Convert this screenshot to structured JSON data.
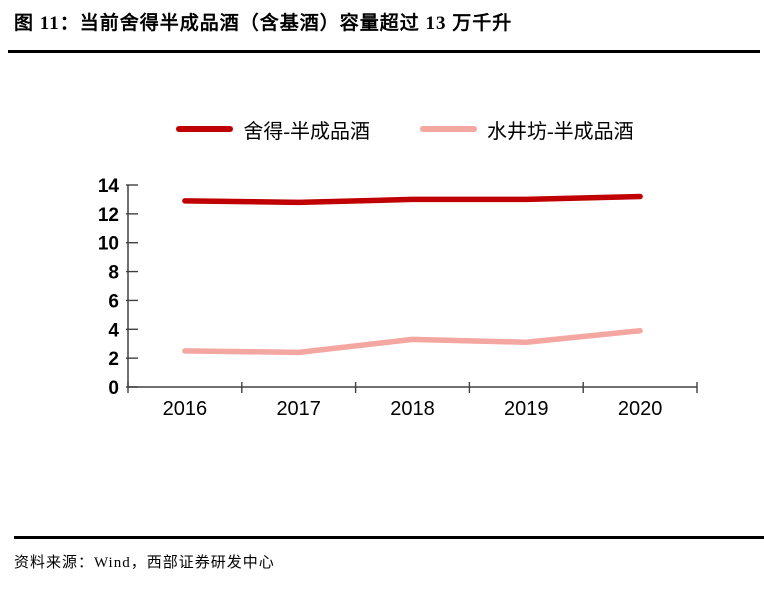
{
  "page": {
    "title": "图 11：当前舍得半成品酒（含基酒）容量超过 13 万千升",
    "source": "资料来源：Wind，西部证券研发中心"
  },
  "colors": {
    "series1": "#C00000",
    "series2": "#F4A6A1",
    "axis": "#404040",
    "tick_text": "#000000"
  },
  "chart_data": {
    "type": "line",
    "title": "当前舍得半成品酒（含基酒）容量超过 13 万千升",
    "categories": [
      "2016",
      "2017",
      "2018",
      "2019",
      "2020"
    ],
    "series": [
      {
        "name": "舍得-半成品酒",
        "color": "#C00000",
        "values": [
          12.9,
          12.8,
          13.0,
          13.0,
          13.2
        ]
      },
      {
        "name": "水井坊-半成品酒",
        "color": "#F4A6A1",
        "values": [
          2.5,
          2.4,
          3.3,
          3.1,
          3.9
        ]
      }
    ],
    "xlabel": "",
    "ylabel": "",
    "ylim": [
      0,
      14
    ],
    "ytick_step": 2,
    "yticks": [
      0,
      2,
      4,
      6,
      8,
      10,
      12,
      14
    ],
    "grid": false,
    "legend_position": "top"
  }
}
